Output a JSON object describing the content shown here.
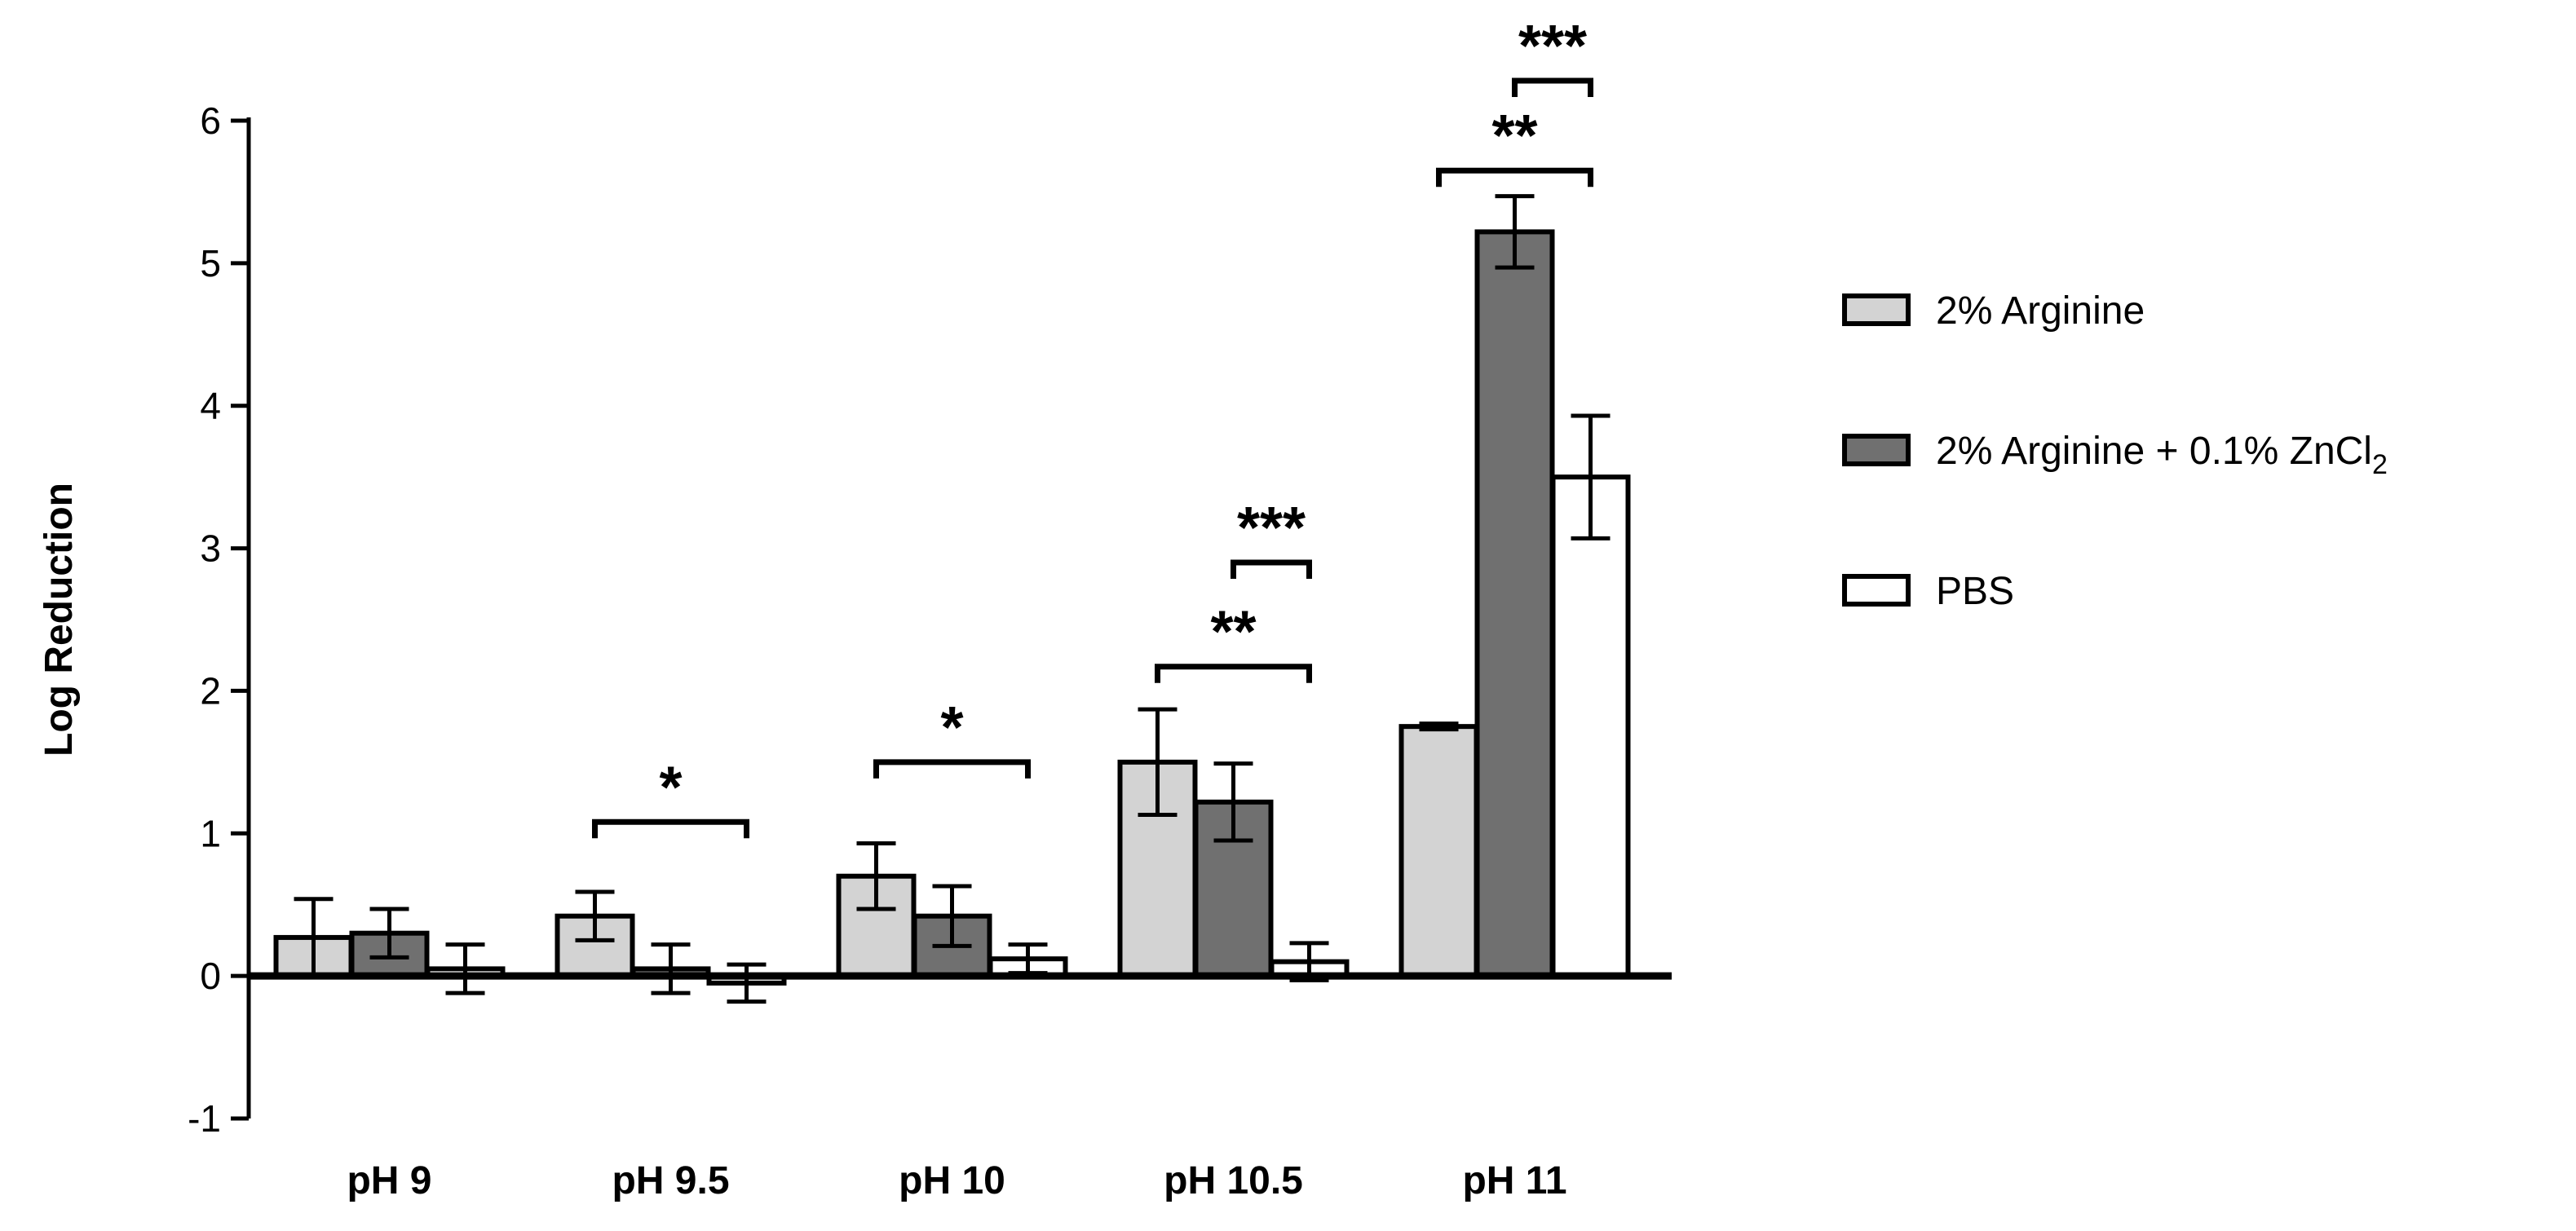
{
  "chart_data": {
    "type": "bar",
    "ylabel": "Log Reduction",
    "ylim": [
      -1,
      6
    ],
    "yticks": [
      -1,
      0,
      1,
      2,
      3,
      4,
      5,
      6
    ],
    "categories": [
      "pH 9",
      "pH 9.5",
      "pH 10",
      "pH 10.5",
      "pH 11"
    ],
    "series": [
      {
        "name": "2% Arginine",
        "color": "#d3d3d3",
        "values": [
          0.27,
          0.42,
          0.7,
          1.5,
          1.75
        ],
        "errors": [
          0.27,
          0.17,
          0.23,
          0.37,
          0.02
        ]
      },
      {
        "name": "2% Arginine + 0.1% ZnCl",
        "name_subscript": "2",
        "color": "#707070",
        "values": [
          0.3,
          0.05,
          0.42,
          1.22,
          5.22
        ],
        "errors": [
          0.17,
          0.17,
          0.21,
          0.27,
          0.25
        ]
      },
      {
        "name": "PBS",
        "color": "#ffffff",
        "values": [
          0.05,
          -0.05,
          0.12,
          0.1,
          3.5
        ],
        "errors": [
          0.17,
          0.13,
          0.1,
          0.13,
          0.43
        ]
      }
    ],
    "legend_position": "right",
    "significance": [
      {
        "category": 1,
        "from_series": 0,
        "to_series": 2,
        "y": 1.08,
        "label": "*"
      },
      {
        "category": 2,
        "from_series": 0,
        "to_series": 2,
        "y": 1.5,
        "label": "*"
      },
      {
        "category": 3,
        "from_series": 0,
        "to_series": 2,
        "y": 2.17,
        "label": "**"
      },
      {
        "category": 3,
        "from_series": 1,
        "to_series": 2,
        "y": 2.9,
        "label": "***"
      },
      {
        "category": 4,
        "from_series": 0,
        "to_series": 2,
        "y": 5.65,
        "label": "**"
      },
      {
        "category": 4,
        "from_series": 1,
        "to_series": 2,
        "y": 6.28,
        "label": "***"
      }
    ]
  }
}
